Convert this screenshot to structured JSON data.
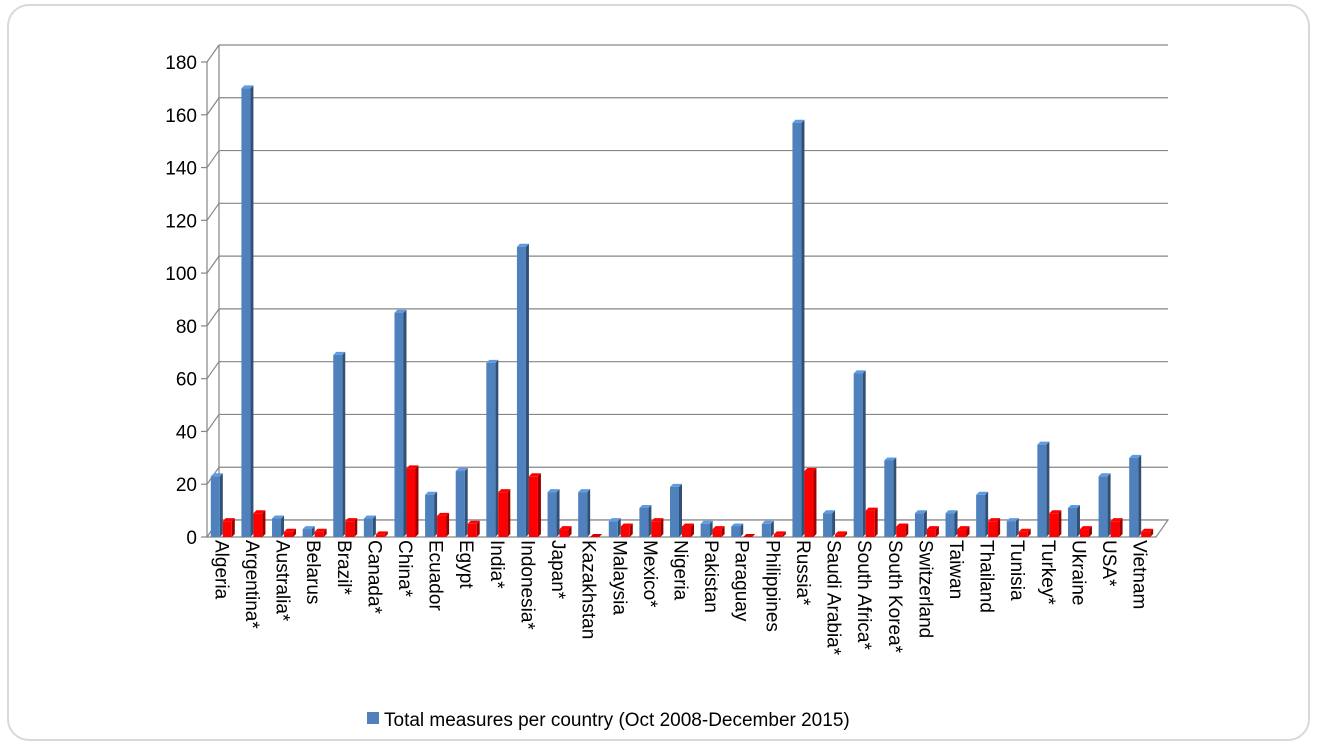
{
  "chart_data": {
    "type": "bar",
    "title": "",
    "xlabel": "",
    "ylabel": "",
    "ylim": [
      0,
      180
    ],
    "yticks": [
      0,
      20,
      40,
      60,
      80,
      100,
      120,
      140,
      160,
      180
    ],
    "grid": true,
    "legend_position": "bottom",
    "categories": [
      "Algeria",
      "Argentina*",
      "Australia*",
      "Belarus",
      "Brazil*",
      "Canada*",
      "China*",
      "Ecuador",
      "Egypt",
      "India*",
      "Indonesia*",
      "Japan*",
      "Kazakhstan",
      "Malaysia",
      "Mexico*",
      "Nigeria",
      "Pakistan",
      "Paraguay",
      "Philippines",
      "Russia*",
      "Saudi Arabia*",
      "South Africa*",
      "South Korea*",
      "Switzerland",
      "Taiwan",
      "Thailand",
      "Tunisia",
      "Turkey*",
      "Ukraine",
      "USA*",
      "Vietnam"
    ],
    "series": [
      {
        "name": "Total measures per country (Oct 2008-December 2015)",
        "color": "#4f81bd",
        "values": [
          23,
          170,
          7,
          3,
          69,
          7,
          85,
          16,
          25,
          66,
          110,
          17,
          17,
          6,
          11,
          19,
          5,
          4,
          5,
          157,
          9,
          62,
          29,
          9,
          9,
          16,
          6,
          35,
          11,
          23,
          30
        ]
      },
      {
        "color": "#ff0000",
        "values": [
          6,
          9,
          2,
          2,
          6,
          1,
          26,
          8,
          5,
          17,
          23,
          3,
          0,
          4,
          6,
          4,
          3,
          0,
          1,
          25,
          1,
          10,
          4,
          3,
          3,
          6,
          2,
          9,
          3,
          6,
          2
        ]
      }
    ]
  }
}
